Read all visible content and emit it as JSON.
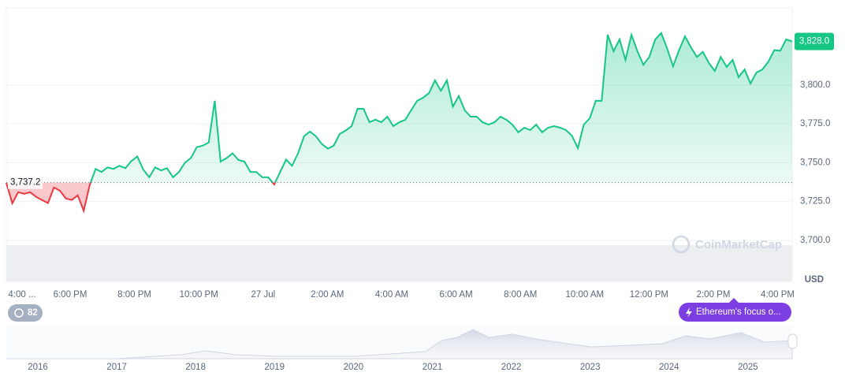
{
  "chart_data": {
    "type": "line",
    "currency": "USD",
    "watermark": "CoinMarketCap",
    "event_count": 82,
    "news": "Ethereum's focus o...",
    "x_labels": [
      "4:00 ...",
      "6:00 PM",
      "8:00 PM",
      "10:00 PM",
      "27 Jul",
      "2:00 AM",
      "4:00 AM",
      "6:00 AM",
      "8:00 AM",
      "10:00 AM",
      "12:00 PM",
      "2:00 PM",
      "4:00 PM"
    ],
    "navigator_labels": [
      "2016",
      "2017",
      "2018",
      "2019",
      "2020",
      "2021",
      "2022",
      "2023",
      "2024",
      "2025"
    ],
    "ylim": [
      3673.6,
      3849.6
    ],
    "yticks": [
      {
        "value": 3700,
        "label": "3,700.0"
      },
      {
        "value": 3725,
        "label": "3,725.0"
      },
      {
        "value": 3750,
        "label": "3,750.0"
      },
      {
        "value": 3775,
        "label": "3,775.0"
      },
      {
        "value": 3800,
        "label": "3,800.0"
      }
    ],
    "grid": true,
    "reference": {
      "value": 3737.2,
      "label": "3,737.2"
    },
    "last_price": {
      "value": 3828.0,
      "label": "3,828.0"
    },
    "up_color": "#16c784",
    "down_color": "#ea3943",
    "values": [
      3737,
      3723.8,
      3731,
      3730,
      3731,
      3728,
      3726,
      3724,
      3734,
      3732,
      3727,
      3726,
      3729,
      3719,
      3735.5,
      3746,
      3744,
      3747,
      3746,
      3748,
      3746.5,
      3751,
      3754,
      3745.6,
      3740.6,
      3747,
      3745,
      3746.5,
      3740.6,
      3744,
      3750,
      3753,
      3760,
      3761,
      3763,
      3789.8,
      3750.7,
      3753,
      3756,
      3751.7,
      3750.7,
      3744,
      3744,
      3740.6,
      3740.6,
      3736,
      3744,
      3752,
      3748,
      3756,
      3767,
      3770,
      3767,
      3762,
      3759,
      3761,
      3768.5,
      3770.7,
      3773.5,
      3784.7,
      3784.7,
      3776,
      3777.7,
      3776,
      3779.6,
      3773.5,
      3776,
      3777.6,
      3783.7,
      3789.8,
      3791.8,
      3794.8,
      3803,
      3796.3,
      3803,
      3786,
      3792.9,
      3783.7,
      3779.6,
      3779.6,
      3776,
      3774.5,
      3776,
      3779.6,
      3777.6,
      3774.5,
      3769.5,
      3772.5,
      3771,
      3774.5,
      3769.5,
      3772.5,
      3773.5,
      3772.5,
      3771,
      3767.4,
      3759.3,
      3774.5,
      3778.6,
      3789.8,
      3789.8,
      3832.3,
      3821.7,
      3829.3,
      3816.1,
      3832.3,
      3821.7,
      3813,
      3818,
      3829.3,
      3833.4,
      3823.4,
      3812,
      3822.4,
      3831.3,
      3824.2,
      3818,
      3821.3,
      3814.1,
      3809,
      3818,
      3811.6,
      3816.1,
      3805,
      3810,
      3800.9,
      3808,
      3810,
      3815,
      3822.4,
      3822,
      3829.3,
      3828.0
    ]
  }
}
